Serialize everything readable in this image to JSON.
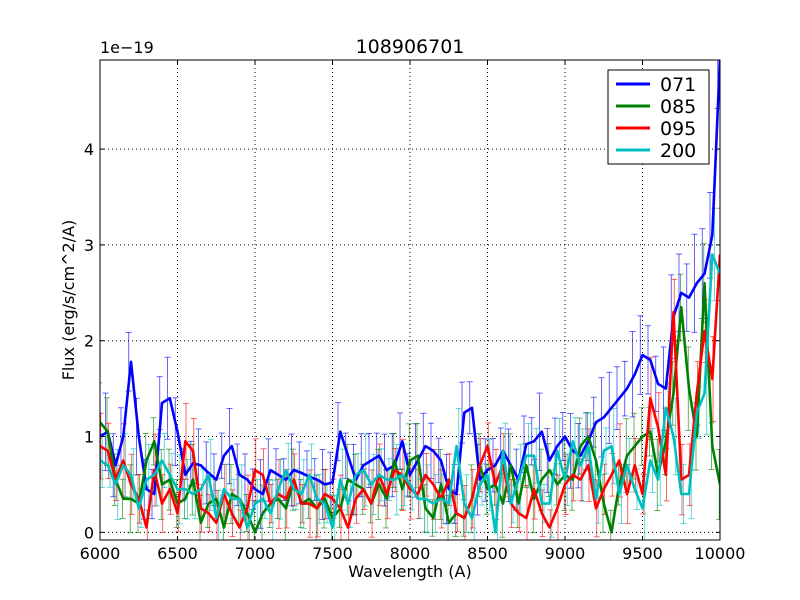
{
  "chart_data": {
    "type": "line",
    "title": "108906701",
    "xlabel": "Wavelength (A)",
    "ylabel": "Flux (erg/s/cm^2/A)",
    "y_offset_label": "1e−19",
    "xlim": [
      6000,
      10000
    ],
    "ylim": [
      -0.08,
      4.93
    ],
    "x_ticks": [
      6000,
      6500,
      7000,
      7500,
      8000,
      8500,
      9000,
      9500,
      10000
    ],
    "y_ticks": [
      0,
      1,
      2,
      3,
      4
    ],
    "grid": true,
    "legend_position": "top-right",
    "x": [
      6000,
      6050,
      6100,
      6150,
      6200,
      6250,
      6300,
      6350,
      6400,
      6450,
      6500,
      6550,
      6600,
      6650,
      6700,
      6750,
      6800,
      6850,
      6900,
      6950,
      7000,
      7050,
      7100,
      7150,
      7200,
      7250,
      7300,
      7350,
      7400,
      7450,
      7500,
      7550,
      7600,
      7650,
      7700,
      7750,
      7800,
      7850,
      7900,
      7950,
      8000,
      8050,
      8100,
      8150,
      8200,
      8250,
      8300,
      8350,
      8400,
      8450,
      8500,
      8550,
      8600,
      8650,
      8700,
      8750,
      8800,
      8850,
      8900,
      8950,
      9000,
      9050,
      9100,
      9150,
      9200,
      9250,
      9300,
      9350,
      9400,
      9450,
      9500,
      9550,
      9600,
      9650,
      9700,
      9750,
      9800,
      9850,
      9900,
      9950,
      10000
    ],
    "series": [
      {
        "name": "071",
        "color": "#0000ff",
        "values": [
          1.0,
          1.05,
          0.7,
          1.0,
          1.78,
          1.0,
          0.45,
          0.4,
          1.35,
          1.4,
          1.05,
          0.6,
          0.72,
          0.7,
          0.62,
          0.55,
          0.8,
          0.9,
          0.6,
          0.55,
          0.45,
          0.4,
          0.65,
          0.6,
          0.55,
          0.65,
          0.62,
          0.58,
          0.55,
          0.5,
          0.52,
          1.05,
          0.8,
          0.55,
          0.7,
          0.75,
          0.8,
          0.65,
          0.7,
          0.95,
          0.6,
          0.75,
          0.9,
          0.85,
          0.75,
          0.45,
          0.4,
          1.25,
          1.3,
          0.55,
          0.65,
          0.7,
          0.85,
          0.7,
          0.55,
          0.92,
          0.95,
          1.05,
          0.75,
          0.9,
          1.0,
          0.85,
          0.8,
          0.95,
          1.15,
          1.2,
          1.3,
          1.4,
          1.5,
          1.65,
          1.85,
          1.8,
          1.55,
          1.5,
          2.25,
          2.5,
          2.45,
          2.6,
          2.7,
          3.1,
          4.95
        ]
      },
      {
        "name": "085",
        "color": "#008000",
        "values": [
          1.15,
          1.05,
          0.55,
          0.35,
          0.35,
          0.3,
          0.75,
          0.95,
          0.5,
          0.55,
          0.3,
          0.35,
          0.55,
          0.1,
          0.3,
          0.35,
          0.05,
          0.4,
          0.35,
          0.2,
          0.0,
          0.2,
          0.3,
          0.35,
          0.25,
          0.55,
          0.3,
          0.35,
          0.25,
          0.35,
          0.15,
          0.25,
          0.55,
          0.5,
          0.45,
          0.3,
          0.5,
          0.35,
          0.75,
          0.45,
          0.75,
          0.8,
          0.25,
          0.15,
          0.5,
          0.1,
          0.2,
          0.15,
          0.35,
          0.7,
          0.45,
          0.5,
          0.3,
          0.7,
          0.3,
          0.7,
          0.35,
          0.55,
          0.65,
          0.5,
          0.6,
          0.55,
          0.9,
          1.0,
          0.75,
          0.3,
          0.0,
          0.5,
          0.8,
          0.9,
          1.0,
          1.05,
          0.6,
          0.95,
          1.45,
          2.35,
          1.5,
          1.0,
          2.6,
          0.9,
          0.5
        ]
      },
      {
        "name": "095",
        "color": "#ff0000",
        "values": [
          0.9,
          0.85,
          0.55,
          0.75,
          0.5,
          0.35,
          0.05,
          0.65,
          0.3,
          0.45,
          0.2,
          0.95,
          0.85,
          0.25,
          0.2,
          0.1,
          0.4,
          0.2,
          0.05,
          0.25,
          0.65,
          0.6,
          0.3,
          0.4,
          0.35,
          0.55,
          0.3,
          0.3,
          0.25,
          0.4,
          0.35,
          0.25,
          0.05,
          0.35,
          0.45,
          0.3,
          0.6,
          0.4,
          0.65,
          0.6,
          0.45,
          0.4,
          0.6,
          0.5,
          0.35,
          0.55,
          0.2,
          0.15,
          0.35,
          0.7,
          0.9,
          0.5,
          0.7,
          0.3,
          0.2,
          0.15,
          0.45,
          0.2,
          0.05,
          0.25,
          0.5,
          0.6,
          0.55,
          0.7,
          0.25,
          0.45,
          0.6,
          0.75,
          0.4,
          0.7,
          0.4,
          1.4,
          1.1,
          0.6,
          2.3,
          0.55,
          0.6,
          1.45,
          2.1,
          1.6,
          2.9
        ]
      },
      {
        "name": "200",
        "color": "#00bfbf",
        "values": [
          0.75,
          0.7,
          0.5,
          0.7,
          0.6,
          0.25,
          0.55,
          0.6,
          0.75,
          0.6,
          0.45,
          0.45,
          0.4,
          0.45,
          0.6,
          0.15,
          0.45,
          0.35,
          0.35,
          0.05,
          0.3,
          0.35,
          0.2,
          0.45,
          0.65,
          0.45,
          0.4,
          0.6,
          0.35,
          0.3,
          0.05,
          0.55,
          0.3,
          0.6,
          0.65,
          0.5,
          0.6,
          0.55,
          0.55,
          0.6,
          0.5,
          0.35,
          0.35,
          0.3,
          0.35,
          0.3,
          0.9,
          0.3,
          0.15,
          0.5,
          0.6,
          0.0,
          0.85,
          0.3,
          0.55,
          0.8,
          0.8,
          0.3,
          0.3,
          0.85,
          0.55,
          0.95,
          0.7,
          0.9,
          0.35,
          0.85,
          0.9,
          0.4,
          0.7,
          0.45,
          0.25,
          0.75,
          0.55,
          1.3,
          1.0,
          0.4,
          0.4,
          1.25,
          1.45,
          2.9,
          2.7
        ]
      }
    ]
  }
}
